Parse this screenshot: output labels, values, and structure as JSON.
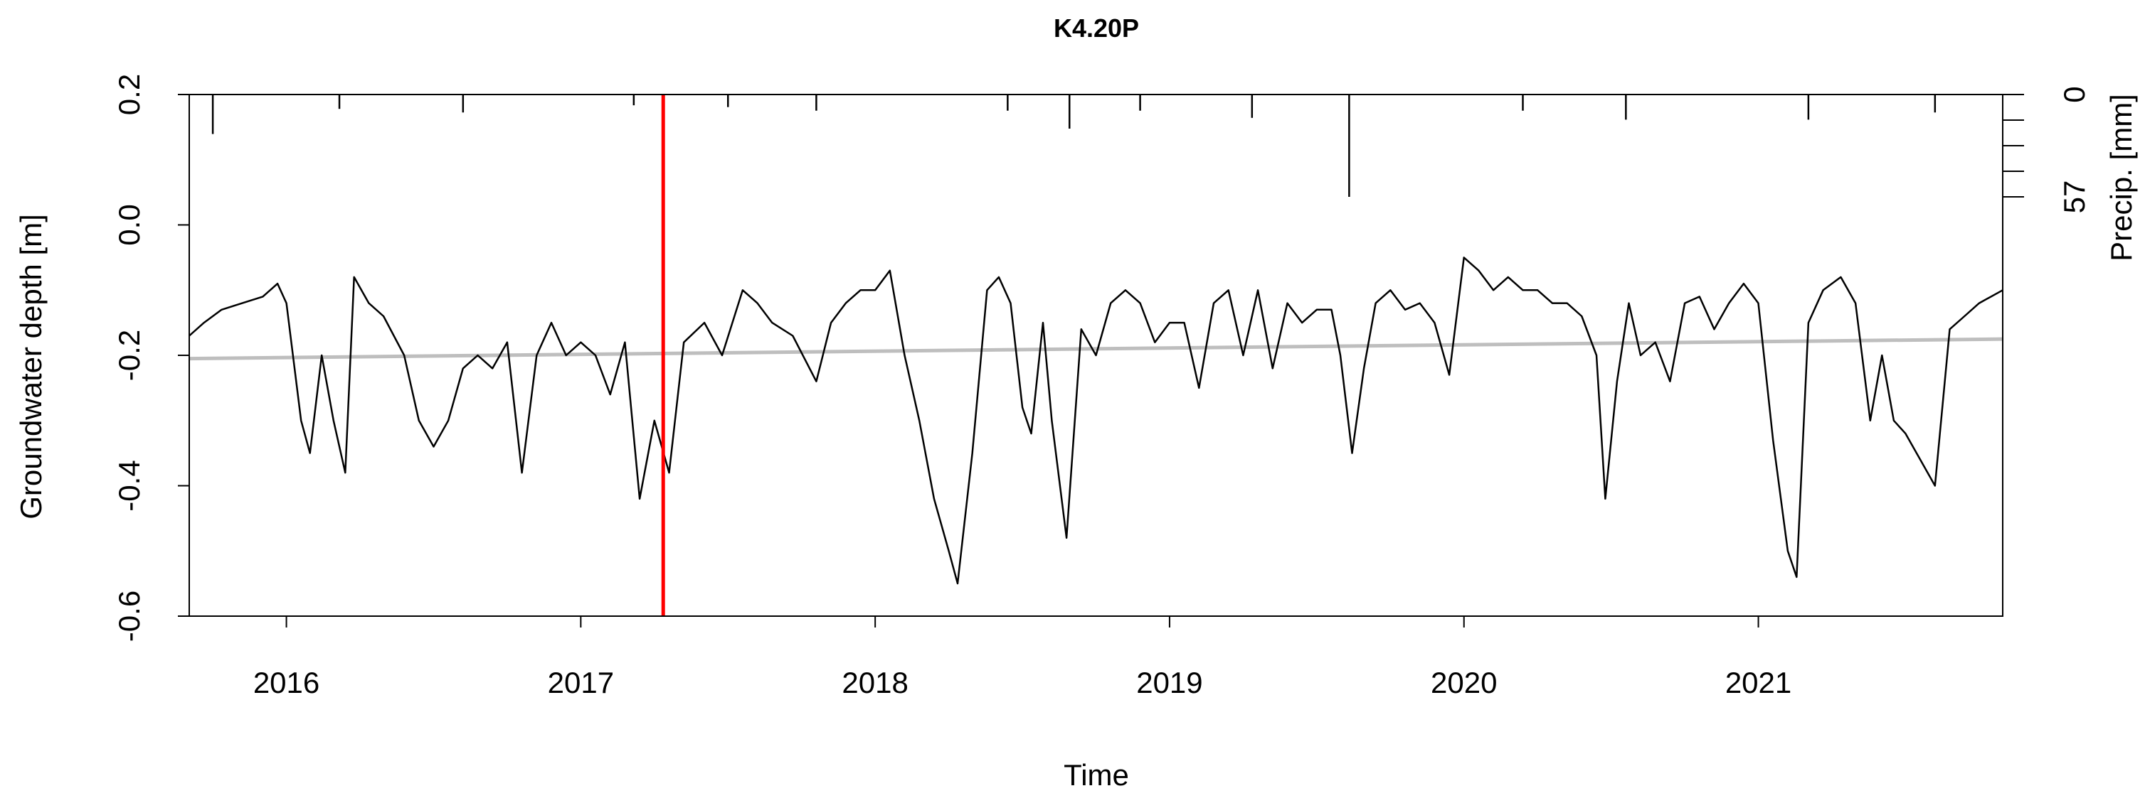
{
  "chart_data": {
    "type": "line",
    "title": "K4.20P",
    "xlabel": "Time",
    "ylabel": "Groundwater depth [m]",
    "ylabel_right": "Precip. [mm]",
    "xlim": [
      2015.67,
      2021.83
    ],
    "ylim": [
      -0.6,
      0.2
    ],
    "x_ticks": [
      2016,
      2017,
      2018,
      2019,
      2020,
      2021
    ],
    "x_tick_labels": [
      "2016",
      "2017",
      "2018",
      "2019",
      "2020",
      "2021"
    ],
    "y_ticks": [
      -0.6,
      -0.4,
      -0.2,
      0.0,
      0.2
    ],
    "y_tick_labels": [
      "-0.6",
      "-0.4",
      "-0.2",
      "0.0",
      "0.2"
    ],
    "y2_tick_labels": [
      "0",
      "57"
    ],
    "y2_max": 57,
    "grid": false,
    "series": [
      {
        "role": "groundwater",
        "color": "#000000",
        "x": [
          2015.67,
          2015.72,
          2015.78,
          2015.85,
          2015.92,
          2015.97,
          2016.0,
          2016.05,
          2016.08,
          2016.12,
          2016.16,
          2016.2,
          2016.23,
          2016.28,
          2016.33,
          2016.4,
          2016.45,
          2016.5,
          2016.55,
          2016.6,
          2016.65,
          2016.7,
          2016.75,
          2016.8,
          2016.85,
          2016.9,
          2016.95,
          2017.0,
          2017.05,
          2017.1,
          2017.15,
          2017.2,
          2017.25,
          2017.3,
          2017.35,
          2017.42,
          2017.48,
          2017.55,
          2017.6,
          2017.65,
          2017.72,
          2017.8,
          2017.85,
          2017.9,
          2017.95,
          2018.0,
          2018.05,
          2018.1,
          2018.15,
          2018.2,
          2018.25,
          2018.28,
          2018.33,
          2018.38,
          2018.42,
          2018.46,
          2018.5,
          2018.53,
          2018.57,
          2018.6,
          2018.65,
          2018.7,
          2018.75,
          2018.8,
          2018.85,
          2018.9,
          2018.95,
          2019.0,
          2019.05,
          2019.1,
          2019.15,
          2019.2,
          2019.25,
          2019.3,
          2019.35,
          2019.4,
          2019.45,
          2019.5,
          2019.55,
          2019.58,
          2019.62,
          2019.66,
          2019.7,
          2019.75,
          2019.8,
          2019.85,
          2019.9,
          2019.95,
          2020.0,
          2020.05,
          2020.1,
          2020.15,
          2020.2,
          2020.25,
          2020.3,
          2020.35,
          2020.4,
          2020.45,
          2020.48,
          2020.52,
          2020.56,
          2020.6,
          2020.65,
          2020.7,
          2020.75,
          2020.8,
          2020.85,
          2020.9,
          2020.95,
          2021.0,
          2021.05,
          2021.1,
          2021.13,
          2021.17,
          2021.22,
          2021.28,
          2021.33,
          2021.38,
          2021.42,
          2021.46,
          2021.5,
          2021.55,
          2021.6,
          2021.65,
          2021.7,
          2021.75,
          2021.83
        ],
        "y": [
          -0.17,
          -0.15,
          -0.13,
          -0.12,
          -0.11,
          -0.09,
          -0.12,
          -0.3,
          -0.35,
          -0.2,
          -0.3,
          -0.38,
          -0.08,
          -0.12,
          -0.14,
          -0.2,
          -0.3,
          -0.34,
          -0.3,
          -0.22,
          -0.2,
          -0.22,
          -0.18,
          -0.38,
          -0.2,
          -0.15,
          -0.2,
          -0.18,
          -0.2,
          -0.26,
          -0.18,
          -0.42,
          -0.3,
          -0.38,
          -0.18,
          -0.15,
          -0.2,
          -0.1,
          -0.12,
          -0.15,
          -0.17,
          -0.24,
          -0.15,
          -0.12,
          -0.1,
          -0.1,
          -0.07,
          -0.2,
          -0.3,
          -0.42,
          -0.5,
          -0.55,
          -0.35,
          -0.1,
          -0.08,
          -0.12,
          -0.28,
          -0.32,
          -0.15,
          -0.3,
          -0.48,
          -0.16,
          -0.2,
          -0.12,
          -0.1,
          -0.12,
          -0.18,
          -0.15,
          -0.15,
          -0.25,
          -0.12,
          -0.1,
          -0.2,
          -0.1,
          -0.22,
          -0.12,
          -0.15,
          -0.13,
          -0.13,
          -0.2,
          -0.35,
          -0.22,
          -0.12,
          -0.1,
          -0.13,
          -0.12,
          -0.15,
          -0.23,
          -0.05,
          -0.07,
          -0.1,
          -0.08,
          -0.1,
          -0.1,
          -0.12,
          -0.12,
          -0.14,
          -0.2,
          -0.42,
          -0.24,
          -0.12,
          -0.2,
          -0.18,
          -0.24,
          -0.12,
          -0.11,
          -0.16,
          -0.12,
          -0.09,
          -0.12,
          -0.33,
          -0.5,
          -0.54,
          -0.15,
          -0.1,
          -0.08,
          -0.12,
          -0.3,
          -0.2,
          -0.3,
          -0.32,
          -0.36,
          -0.4,
          -0.16,
          -0.14,
          -0.12,
          -0.1
        ]
      },
      {
        "role": "trend",
        "color": "#bebebe",
        "x": [
          2015.67,
          2021.83
        ],
        "y": [
          -0.205,
          -0.175
        ]
      }
    ],
    "precip_bars": [
      {
        "x": 2015.75,
        "mm": 22
      },
      {
        "x": 2016.18,
        "mm": 8
      },
      {
        "x": 2016.6,
        "mm": 10
      },
      {
        "x": 2017.18,
        "mm": 6
      },
      {
        "x": 2017.5,
        "mm": 7
      },
      {
        "x": 2017.8,
        "mm": 9
      },
      {
        "x": 2018.45,
        "mm": 9
      },
      {
        "x": 2018.66,
        "mm": 19
      },
      {
        "x": 2018.9,
        "mm": 9
      },
      {
        "x": 2019.28,
        "mm": 13
      },
      {
        "x": 2019.61,
        "mm": 57
      },
      {
        "x": 2020.2,
        "mm": 9
      },
      {
        "x": 2020.55,
        "mm": 14
      },
      {
        "x": 2021.17,
        "mm": 14
      },
      {
        "x": 2021.6,
        "mm": 10
      }
    ],
    "vertical_marker": {
      "x": 2017.28,
      "color": "#ff0000"
    }
  }
}
